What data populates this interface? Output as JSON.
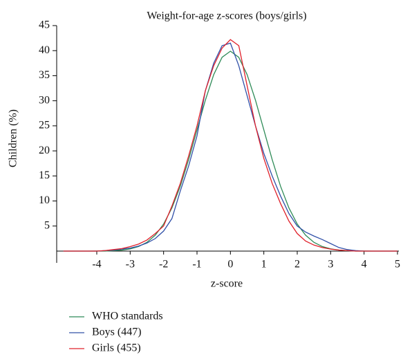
{
  "chart_data": {
    "type": "line",
    "title": "Weight-for-age z-scores (boys/girls)",
    "xlabel": "z-score",
    "ylabel": "Children (%)",
    "x": [
      -5,
      -4.75,
      -4.5,
      -4.25,
      -4,
      -3.75,
      -3.5,
      -3.25,
      -3,
      -2.75,
      -2.5,
      -2.25,
      -2,
      -1.75,
      -1.5,
      -1.25,
      -1,
      -0.75,
      -0.5,
      -0.25,
      0,
      0.25,
      0.5,
      0.75,
      1,
      1.25,
      1.5,
      1.75,
      2,
      2.25,
      2.5,
      2.75,
      3,
      3.25,
      3.5,
      3.75,
      4,
      4.25,
      4.5,
      4.75,
      5
    ],
    "series": [
      {
        "name": "WHO standards",
        "color": "#2e8b57",
        "values": [
          0,
          0,
          0,
          0,
          0.01,
          0.01,
          0.09,
          0.2,
          0.44,
          0.91,
          1.75,
          3.17,
          5.4,
          8.63,
          12.95,
          18.26,
          24.2,
          30.11,
          35.21,
          38.67,
          39.89,
          38.67,
          35.21,
          30.11,
          24.2,
          18.26,
          12.95,
          8.63,
          5.4,
          3.17,
          1.75,
          0.91,
          0.44,
          0.2,
          0.09,
          0.01,
          0.01,
          0,
          0,
          0,
          0
        ]
      },
      {
        "name": "Boys (447)",
        "color": "#3050a8",
        "values": [
          0,
          0,
          0,
          0,
          0,
          0.1,
          0.2,
          0.4,
          0.6,
          1,
          1.6,
          2.5,
          4,
          6.5,
          12,
          17,
          23,
          32,
          37.5,
          41,
          41.5,
          37,
          31,
          25,
          19.5,
          15,
          11,
          7.5,
          5,
          3.8,
          3,
          2.3,
          1.5,
          0.7,
          0.3,
          0.1,
          0,
          0,
          0,
          0,
          0
        ]
      },
      {
        "name": "Girls (455)",
        "color": "#e0202a",
        "values": [
          0,
          0,
          0,
          0,
          0,
          0.1,
          0.3,
          0.5,
          0.9,
          1.4,
          2.2,
          3.5,
          5,
          9,
          13.5,
          19,
          25,
          32,
          37,
          40.5,
          42.2,
          41,
          33,
          25,
          18.5,
          13.5,
          9.5,
          6,
          3.5,
          2,
          1.2,
          0.7,
          0.4,
          0.2,
          0.1,
          0,
          0,
          0,
          0,
          0,
          0
        ]
      }
    ],
    "xlim": [
      -5.2,
      5
    ],
    "xticks": [
      -4,
      -3,
      -2,
      -1,
      0,
      1,
      2,
      3,
      4,
      5
    ],
    "ylim": [
      0,
      45
    ],
    "yticks": [
      5,
      10,
      15,
      20,
      25,
      30,
      35,
      40,
      45
    ]
  }
}
